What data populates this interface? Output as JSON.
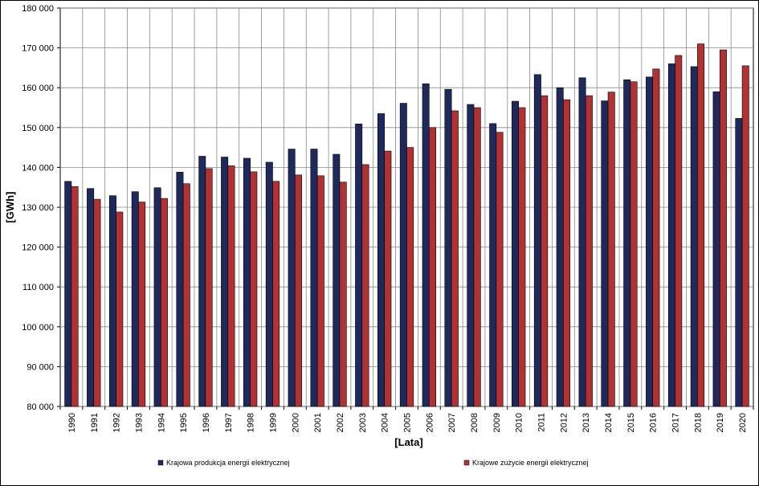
{
  "chart_data": {
    "type": "bar",
    "xlabel": "[Lata]",
    "ylabel": "[GWh]",
    "ylim": [
      80000,
      180000
    ],
    "ytick_step": 10000,
    "ytick_labels": [
      "80 000",
      "90 000",
      "100 000",
      "110 000",
      "120 000",
      "130 000",
      "140 000",
      "150 000",
      "160 000",
      "170 000",
      "180 000"
    ],
    "grid": true,
    "legend_position": "bottom",
    "categories": [
      "1990",
      "1991",
      "1992",
      "1993",
      "1994",
      "1995",
      "1996",
      "1997",
      "1998",
      "1999",
      "2000",
      "2001",
      "2002",
      "2003",
      "2004",
      "2005",
      "2006",
      "2007",
      "2008",
      "2009",
      "2010",
      "2011",
      "2012",
      "2013",
      "2014",
      "2015",
      "2016",
      "2017",
      "2018",
      "2019",
      "2020"
    ],
    "series": [
      {
        "name": "Krajowa produkcja energii elektrycznej",
        "color": "#1f2a5c",
        "values": [
          136500,
          134700,
          132900,
          133900,
          134900,
          138800,
          142800,
          142600,
          142300,
          141300,
          144600,
          144600,
          143300,
          150900,
          153500,
          156100,
          161000,
          159600,
          155800,
          151000,
          156600,
          163300,
          160000,
          162500,
          156700,
          162000,
          162700,
          166000,
          165300,
          159000,
          152300
        ]
      },
      {
        "name": "Krajowe zużycie energii elektrycznej",
        "color": "#b03232",
        "values": [
          135200,
          132000,
          128800,
          131300,
          132200,
          135900,
          139700,
          140400,
          138900,
          136500,
          138100,
          137900,
          136300,
          140700,
          144100,
          145000,
          150000,
          154200,
          155000,
          148800,
          155000,
          158000,
          157000,
          158000,
          158900,
          161500,
          164700,
          168100,
          171000,
          169500,
          165500
        ]
      }
    ]
  }
}
